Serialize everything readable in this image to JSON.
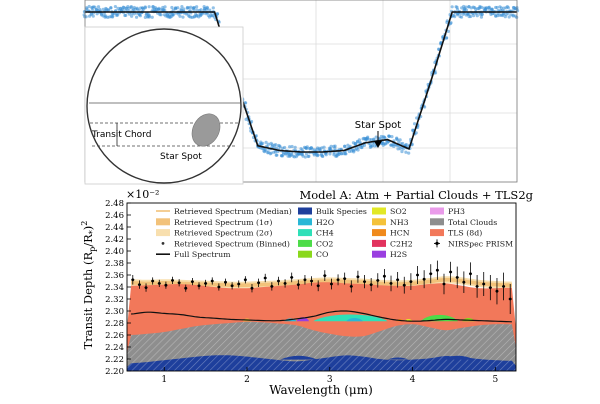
{
  "chart_data": [
    {
      "type": "line",
      "title": "",
      "xlabel": "",
      "ylabel": "",
      "grid": true,
      "annotations": [
        "Star Spot"
      ],
      "series": [
        {
          "kind": "scatter-band",
          "color": "#3a8fd6"
        },
        {
          "kind": "model",
          "color": "#111111"
        }
      ],
      "x": [
        0,
        1,
        2,
        3,
        4,
        5,
        6,
        7,
        8,
        9,
        10,
        11,
        12,
        13,
        14,
        15,
        16,
        17,
        18,
        19,
        20
      ],
      "flux": [
        1.0,
        1.0,
        1.0,
        1.0,
        1.0,
        1.0,
        1.0,
        0.55,
        0.14,
        0.11,
        0.1,
        0.1,
        0.11,
        0.16,
        0.18,
        0.12,
        0.55,
        1.0,
        1.0,
        1.0,
        1.0
      ],
      "inset": {
        "labels": [
          "Transit Chord",
          "Star Spot"
        ],
        "chord_fraction": [
          0.5,
          0.6
        ],
        "spot_fraction": [
          0.63,
          0.68
        ]
      }
    },
    {
      "type": "area",
      "title": "Model A: Atm + Partial Clouds + TLS2g",
      "xlabel": "Wavelength (μm)",
      "ylabel": "Transit Depth (R_p/R_*)^2",
      "y_multiplier": "×10⁻²",
      "xlim": [
        0.55,
        5.25
      ],
      "ylim": [
        2.2,
        2.48
      ],
      "xticks": [
        1,
        2,
        3,
        4,
        5
      ],
      "yticks": [
        2.2,
        2.22,
        2.24,
        2.26,
        2.28,
        2.3,
        2.32,
        2.34,
        2.36,
        2.38,
        2.4,
        2.42,
        2.44,
        2.46,
        2.48
      ],
      "legend_position": "top",
      "legend": [
        {
          "label": "Retrieved Spectrum (Median)",
          "style": "line",
          "color": "#f2c27a"
        },
        {
          "label": "Retrieved Spectrum (1σ)",
          "style": "patch",
          "color": "#f2c27a"
        },
        {
          "label": "Retrieved Spectrum (2σ)",
          "style": "patch",
          "color": "#f8dfae"
        },
        {
          "label": "Retrieved Spectrum (Binned)",
          "style": "dot",
          "color": "#333333"
        },
        {
          "label": "Full Spectrum",
          "style": "line",
          "color": "#111111"
        },
        {
          "label": "Bulk Species",
          "style": "patch",
          "color": "#1e3f9c"
        },
        {
          "label": "H2O",
          "style": "patch",
          "color": "#29b7d6"
        },
        {
          "label": "CH4",
          "style": "patch",
          "color": "#2ee0b8"
        },
        {
          "label": "CO2",
          "style": "patch",
          "color": "#4ddc49"
        },
        {
          "label": "CO",
          "style": "patch",
          "color": "#8ad81c"
        },
        {
          "label": "SO2",
          "style": "patch",
          "color": "#e2e826"
        },
        {
          "label": "NH3",
          "style": "patch",
          "color": "#f4c23a"
        },
        {
          "label": "HCN",
          "style": "patch",
          "color": "#f08a1c"
        },
        {
          "label": "C2H2",
          "style": "patch",
          "color": "#e2335e"
        },
        {
          "label": "H2S",
          "style": "patch",
          "color": "#9a3fe0"
        },
        {
          "label": "PH3",
          "style": "patch",
          "color": "#ea9bea"
        },
        {
          "label": "Total Clouds",
          "style": "patch",
          "color": "#8e8e8e"
        },
        {
          "label": "TLS (8d)",
          "style": "patch",
          "color": "#f2785a"
        },
        {
          "label": "NIRSpec PRISM",
          "style": "errorbar",
          "color": "#000000"
        }
      ],
      "x": [
        0.6,
        0.8,
        1.0,
        1.2,
        1.4,
        1.6,
        1.8,
        2.0,
        2.2,
        2.4,
        2.6,
        2.8,
        3.0,
        3.2,
        3.4,
        3.6,
        3.8,
        4.0,
        4.2,
        4.4,
        4.6,
        4.8,
        5.0,
        5.2
      ],
      "series": [
        {
          "name": "Bulk Species",
          "values": [
            2.213,
            2.215,
            2.218,
            2.221,
            2.224,
            2.226,
            2.226,
            2.224,
            2.221,
            2.218,
            2.216,
            2.219,
            2.223,
            2.226,
            2.224,
            2.22,
            2.218,
            2.219,
            2.221,
            2.225,
            2.223,
            2.22,
            2.218,
            2.217
          ]
        },
        {
          "name": "Total Clouds",
          "values": [
            2.26,
            2.262,
            2.265,
            2.27,
            2.275,
            2.278,
            2.28,
            2.282,
            2.281,
            2.279,
            2.276,
            2.268,
            2.262,
            2.258,
            2.258,
            2.266,
            2.275,
            2.278,
            2.273,
            2.268,
            2.272,
            2.276,
            2.278,
            2.278
          ]
        },
        {
          "name": "Full Spectrum",
          "values": [
            2.295,
            2.298,
            2.296,
            2.294,
            2.29,
            2.288,
            2.286,
            2.285,
            2.284,
            2.284,
            2.287,
            2.291,
            2.298,
            2.3,
            2.296,
            2.29,
            2.285,
            2.283,
            2.284,
            2.286,
            2.285,
            2.284,
            2.283,
            2.282
          ]
        },
        {
          "name": "TLS (8d)",
          "values": [
            2.342,
            2.343,
            2.344,
            2.345,
            2.343,
            2.34,
            2.338,
            2.338,
            2.34,
            2.342,
            2.344,
            2.347,
            2.348,
            2.346,
            2.345,
            2.343,
            2.342,
            2.342,
            2.345,
            2.346,
            2.342,
            2.338,
            2.338,
            2.339
          ]
        },
        {
          "name": "Retrieved Spectrum (Median)",
          "values": [
            2.347,
            2.346,
            2.347,
            2.346,
            2.345,
            2.344,
            2.343,
            2.343,
            2.344,
            2.345,
            2.347,
            2.349,
            2.35,
            2.349,
            2.348,
            2.346,
            2.345,
            2.346,
            2.349,
            2.352,
            2.35,
            2.346,
            2.344,
            2.343
          ]
        }
      ],
      "molecular_features": [
        {
          "name": "CH4",
          "x": [
            2.8,
            3.7
          ],
          "peak": 2.298
        },
        {
          "name": "CO2",
          "x": [
            4.1,
            4.55
          ],
          "peak": 2.297
        },
        {
          "name": "H2S",
          "x": [
            2.6,
            2.75
          ],
          "peak": 2.292
        },
        {
          "name": "H2O",
          "x": [
            2.45,
            2.6
          ],
          "peak": 2.289
        },
        {
          "name": "H2O",
          "x": [
            3.2,
            3.4
          ],
          "peak": 2.29
        },
        {
          "name": "CO",
          "x": [
            4.6,
            4.75
          ],
          "peak": 2.29
        },
        {
          "name": "NH3",
          "x": [
            1.95,
            2.05
          ],
          "peak": 2.289
        },
        {
          "name": "HCN",
          "x": [
            3.8,
            3.9
          ],
          "peak": 2.288
        },
        {
          "name": "SO2",
          "x": [
            3.9,
            4.0
          ],
          "peak": 2.288
        }
      ],
      "binned": {
        "x": [
          0.62,
          0.7,
          0.78,
          0.86,
          0.94,
          1.02,
          1.1,
          1.18,
          1.26,
          1.34,
          1.42,
          1.5,
          1.58,
          1.66,
          1.74,
          1.82,
          1.9,
          1.98,
          2.06,
          2.14,
          2.22,
          2.3,
          2.38,
          2.46,
          2.54,
          2.62,
          2.7,
          2.78,
          2.86,
          2.94,
          3.02,
          3.1,
          3.18,
          3.26,
          3.34,
          3.42,
          3.5,
          3.58,
          3.66,
          3.74,
          3.82,
          3.9,
          3.98,
          4.06,
          4.14,
          4.22,
          4.3,
          4.38,
          4.46,
          4.54,
          4.62,
          4.7,
          4.78,
          4.86,
          4.94,
          5.02,
          5.1,
          5.18
        ],
        "y": [
          2.352,
          2.344,
          2.339,
          2.35,
          2.346,
          2.343,
          2.351,
          2.347,
          2.338,
          2.349,
          2.342,
          2.346,
          2.35,
          2.34,
          2.348,
          2.342,
          2.345,
          2.352,
          2.338,
          2.347,
          2.355,
          2.341,
          2.35,
          2.346,
          2.356,
          2.344,
          2.352,
          2.35,
          2.342,
          2.359,
          2.345,
          2.352,
          2.354,
          2.341,
          2.357,
          2.349,
          2.344,
          2.351,
          2.358,
          2.346,
          2.352,
          2.343,
          2.349,
          2.36,
          2.353,
          2.362,
          2.368,
          2.345,
          2.365,
          2.356,
          2.348,
          2.362,
          2.341,
          2.345,
          2.339,
          2.333,
          2.341,
          2.32
        ],
        "err": [
          0.008,
          0.007,
          0.007,
          0.006,
          0.006,
          0.006,
          0.006,
          0.006,
          0.006,
          0.006,
          0.006,
          0.006,
          0.006,
          0.006,
          0.006,
          0.006,
          0.006,
          0.006,
          0.007,
          0.007,
          0.007,
          0.007,
          0.007,
          0.007,
          0.008,
          0.008,
          0.008,
          0.008,
          0.009,
          0.009,
          0.009,
          0.009,
          0.01,
          0.01,
          0.01,
          0.011,
          0.011,
          0.012,
          0.012,
          0.013,
          0.013,
          0.014,
          0.014,
          0.015,
          0.015,
          0.016,
          0.016,
          0.017,
          0.017,
          0.018,
          0.018,
          0.019,
          0.019,
          0.02,
          0.021,
          0.022,
          0.023,
          0.025
        ]
      }
    }
  ]
}
